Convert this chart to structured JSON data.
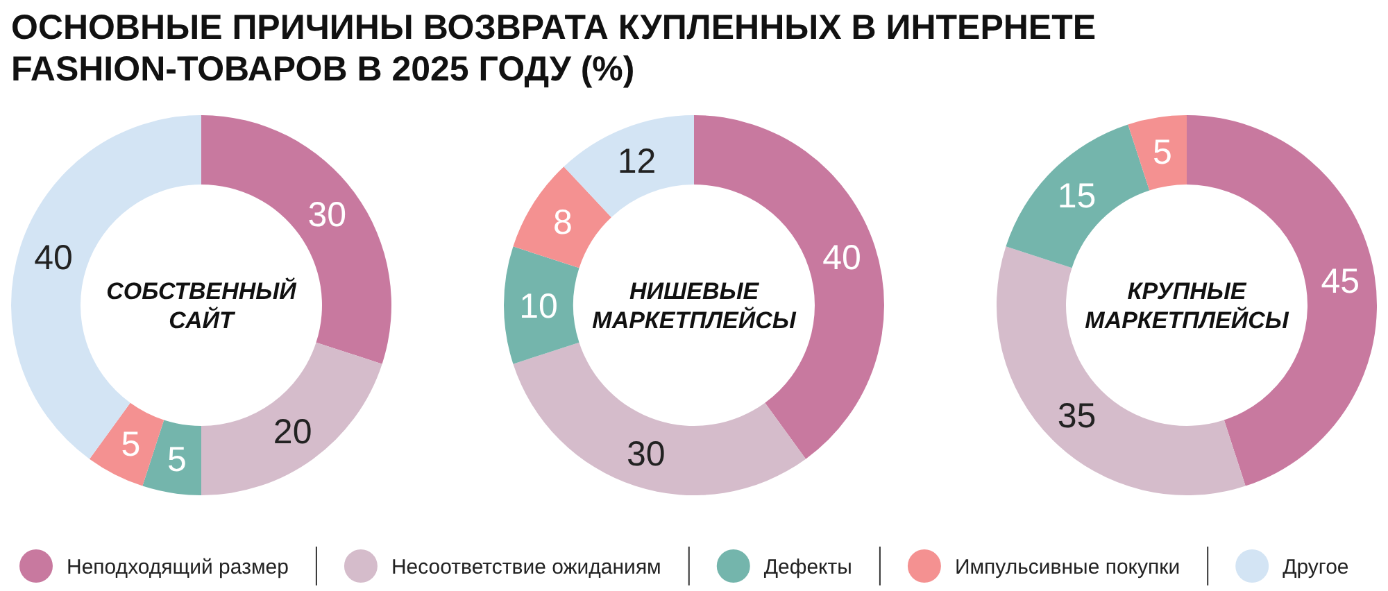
{
  "chart_data": [
    {
      "type": "donut",
      "title": "ОСНОВНЫЕ ПРИЧИНЫ ВОЗВРАТА КУПЛЕННЫХ В ИНТЕРНЕТЕ FASHION-ТОВАРОВ В 2025 ГОДУ (%)",
      "subtitle": "СОБСТВЕННЫЙ САЙТ",
      "categories": [
        "Неподходящий размер",
        "Несоответствие ожиданиям",
        "Дефекты",
        "Импульсивные покупки",
        "Другое"
      ],
      "values": [
        30,
        20,
        5,
        5,
        40
      ],
      "colors": [
        "#c8799f",
        "#d5bccb",
        "#74b5ac",
        "#f49191",
        "#d3e4f4"
      ],
      "data_labels": true,
      "legend": "bottom"
    },
    {
      "type": "donut",
      "subtitle": "НИШЕВЫЕ МАРКЕТПЛЕЙСЫ",
      "categories": [
        null,
        null,
        null,
        null,
        null
      ],
      "values": [
        40,
        30,
        10,
        8,
        12
      ],
      "colors": [
        "#c8799f",
        "#d5bccb",
        "#74b5ac",
        "#f49191",
        "#d3e4f4"
      ],
      "data_labels": true
    },
    {
      "type": "donut",
      "subtitle": "КРУПНЫЕ МАРКЕТПЛЕЙСЫ",
      "categories": [
        null,
        null,
        null,
        null
      ],
      "values": [
        45,
        35,
        15,
        5
      ],
      "colors": [
        "#c8799f",
        "#d5bccb",
        "#74b5ac",
        "#f49191"
      ],
      "data_labels": true
    }
  ]
}
